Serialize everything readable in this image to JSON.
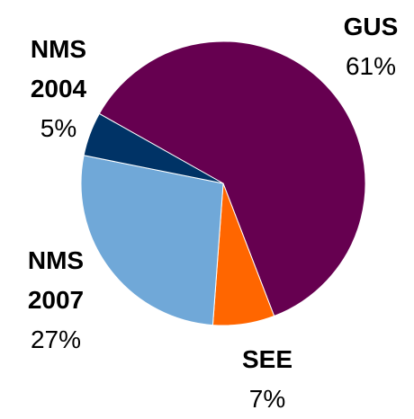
{
  "chart_data": {
    "type": "pie",
    "categories": [
      "GUS",
      "SEE",
      "NMS 2007",
      "NMS 2004"
    ],
    "values": [
      61,
      7,
      27,
      5
    ],
    "value_labels": [
      "61%",
      "7%",
      "27%",
      "5%"
    ],
    "colors": [
      "#660050",
      "#ff6600",
      "#70a8d8",
      "#003366"
    ]
  }
}
